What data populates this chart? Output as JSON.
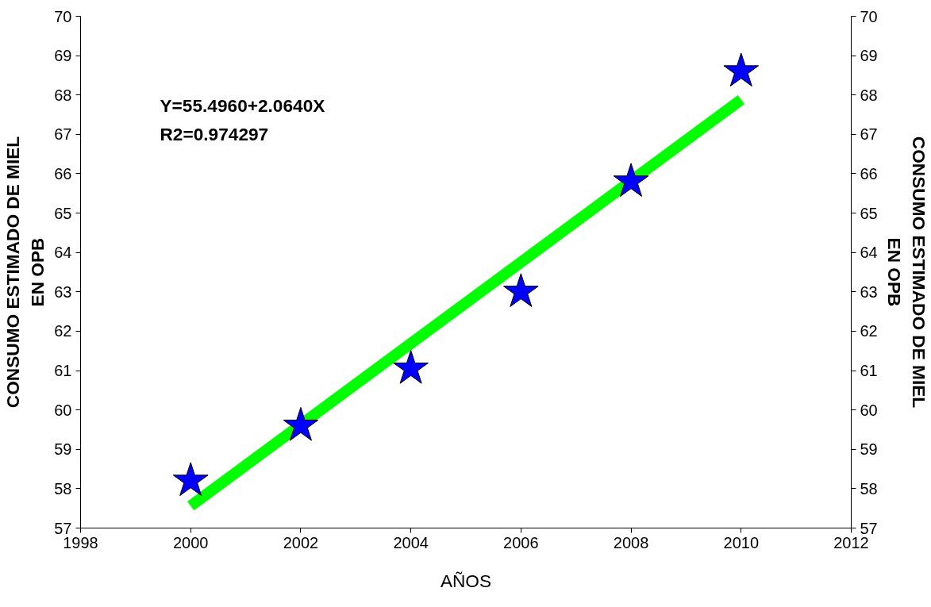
{
  "chart_data": {
    "type": "scatter",
    "xlabel": "AÑOS",
    "ylabel": "CONSUMO ESTIMADO DE MIEL\nEN OPB",
    "y2label": "CONSUMO ESTIMADO DE MIEL\nEN OPB",
    "x": [
      2000,
      2002,
      2004,
      2006,
      2008,
      2010
    ],
    "series": [
      {
        "color": "#0000ff",
        "marker": "star",
        "values": [
          58.2,
          59.6,
          61.05,
          63.0,
          65.8,
          68.6
        ]
      },
      {
        "type": "line",
        "color": "#00ff00",
        "x": [
          2000,
          2010
        ],
        "values": [
          57.56,
          67.88
        ]
      }
    ],
    "annotations": [
      "Y=55.4960+2.0640X",
      "R2=0.974297"
    ],
    "xlim": [
      1998,
      2012
    ],
    "xticks": [
      1998,
      2000,
      2002,
      2004,
      2006,
      2008,
      2010,
      2012
    ],
    "ylim": [
      57,
      70
    ],
    "yticks": [
      57,
      58,
      59,
      60,
      61,
      62,
      63,
      64,
      65,
      66,
      67,
      68,
      69,
      70
    ],
    "y2lim": [
      57,
      70
    ],
    "y2ticks": [
      57,
      58,
      59,
      60,
      61,
      62,
      63,
      64,
      65,
      66,
      67,
      68,
      69,
      70
    ],
    "grid": false
  }
}
